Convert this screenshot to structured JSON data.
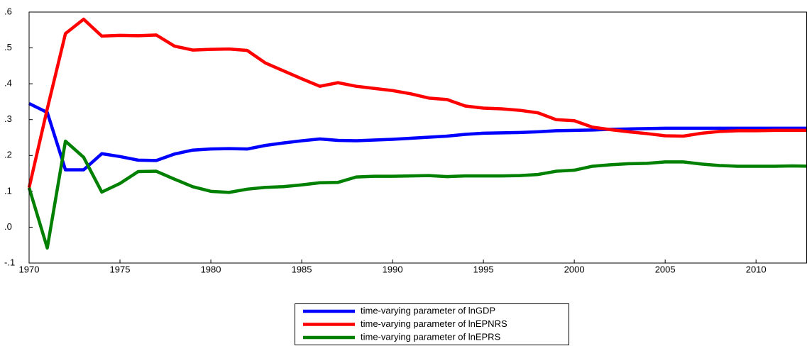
{
  "chart_data": {
    "type": "line",
    "x": [
      1970,
      1971,
      1972,
      1973,
      1974,
      1975,
      1976,
      1977,
      1978,
      1979,
      1980,
      1981,
      1982,
      1983,
      1984,
      1985,
      1986,
      1987,
      1988,
      1989,
      1990,
      1991,
      1992,
      1993,
      1994,
      1995,
      1996,
      1997,
      1998,
      1999,
      2000,
      2001,
      2002,
      2003,
      2004,
      2005,
      2006,
      2007,
      2008,
      2009,
      2010,
      2011,
      2012,
      2013
    ],
    "series": [
      {
        "name": "time-varying parameter of lnGDP",
        "color": "#0000ff",
        "values": [
          0.345,
          0.32,
          0.16,
          0.16,
          0.205,
          0.197,
          0.187,
          0.186,
          0.204,
          0.215,
          0.218,
          0.219,
          0.218,
          0.228,
          0.235,
          0.241,
          0.246,
          0.242,
          0.241,
          0.243,
          0.245,
          0.248,
          0.251,
          0.254,
          0.259,
          0.262,
          0.263,
          0.264,
          0.266,
          0.269,
          0.27,
          0.271,
          0.273,
          0.274,
          0.275,
          0.276,
          0.276,
          0.276,
          0.276,
          0.276,
          0.276,
          0.276,
          0.276,
          0.276
        ]
      },
      {
        "name": "time-varying parameter of lnEPNRS",
        "color": "#ff0000",
        "values": [
          0.11,
          0.33,
          0.54,
          0.58,
          0.533,
          0.535,
          0.534,
          0.536,
          0.505,
          0.494,
          0.496,
          0.497,
          0.493,
          0.458,
          0.436,
          0.414,
          0.393,
          0.403,
          0.393,
          0.387,
          0.381,
          0.372,
          0.36,
          0.356,
          0.338,
          0.332,
          0.33,
          0.326,
          0.319,
          0.3,
          0.297,
          0.279,
          0.272,
          0.266,
          0.261,
          0.255,
          0.254,
          0.262,
          0.267,
          0.269,
          0.269,
          0.27,
          0.27,
          0.27
        ]
      },
      {
        "name": "time-varying parameter of lnEPRS",
        "color": "#008000",
        "values": [
          0.11,
          -0.058,
          0.24,
          0.195,
          0.098,
          0.122,
          0.155,
          0.156,
          0.134,
          0.113,
          0.1,
          0.097,
          0.106,
          0.111,
          0.113,
          0.118,
          0.124,
          0.125,
          0.14,
          0.142,
          0.142,
          0.143,
          0.144,
          0.141,
          0.143,
          0.143,
          0.143,
          0.144,
          0.147,
          0.156,
          0.159,
          0.17,
          0.174,
          0.177,
          0.178,
          0.182,
          0.182,
          0.176,
          0.172,
          0.17,
          0.17,
          0.17,
          0.171,
          0.17
        ]
      }
    ],
    "xlim": [
      1970,
      2013
    ],
    "xticks": [
      1970,
      1975,
      1980,
      1985,
      1990,
      1995,
      2000,
      2005,
      2010
    ],
    "ylim": [
      -0.1,
      0.6
    ],
    "yticks": [
      {
        "value": -0.1,
        "label": "-.1"
      },
      {
        "value": 0,
        "label": ".0"
      },
      {
        "value": 0.1,
        "label": ".1"
      },
      {
        "value": 0.2,
        "label": ".2"
      },
      {
        "value": 0.3,
        "label": ".3"
      },
      {
        "value": 0.4,
        "label": ".4"
      },
      {
        "value": 0.5,
        "label": ".5"
      },
      {
        "value": 0.6,
        "label": ".6"
      }
    ],
    "legend": "bottom"
  }
}
